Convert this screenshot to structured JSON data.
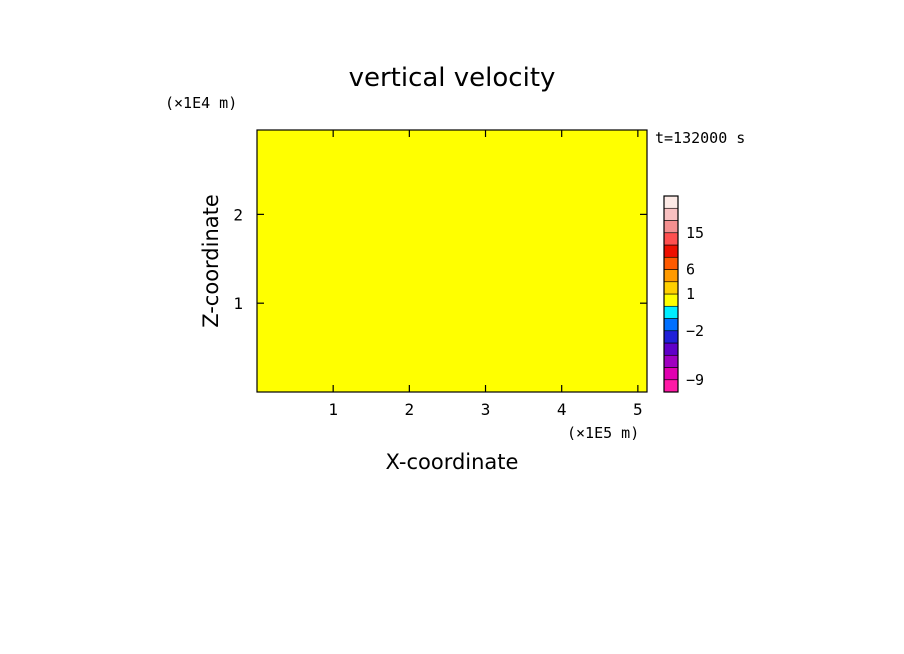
{
  "chart_data": {
    "type": "heatmap",
    "title": "vertical velocity",
    "xlabel": "X-coordinate",
    "ylabel": "Z-coordinate",
    "x_unit": "(×1E5 m)",
    "y_unit": "(×1E4 m)",
    "time_label": "t=132000 s",
    "xlim": [
      0,
      5.12
    ],
    "ylim": [
      0,
      2.95
    ],
    "x_ticks": [
      {
        "value": 1,
        "label": "1"
      },
      {
        "value": 2,
        "label": "2"
      },
      {
        "value": 3,
        "label": "3"
      },
      {
        "value": 4,
        "label": "4"
      },
      {
        "value": 5,
        "label": "5"
      }
    ],
    "y_ticks": [
      {
        "value": 1,
        "label": "1"
      },
      {
        "value": 2,
        "label": "2"
      }
    ],
    "field_colors": {
      "positive": "#ffff00",
      "negative": "#00eeff"
    },
    "colorbar": {
      "bins": [
        {
          "color": "#ff1aa6"
        },
        {
          "color": "#e000b0"
        },
        {
          "color": "#a000c0"
        },
        {
          "color": "#6000c8"
        },
        {
          "color": "#2020d8"
        },
        {
          "color": "#0070ff"
        },
        {
          "color": "#00eeff"
        },
        {
          "color": "#ffff00"
        },
        {
          "color": "#ffd000"
        },
        {
          "color": "#ff9a00"
        },
        {
          "color": "#ff5a00"
        },
        {
          "color": "#ee1000"
        },
        {
          "color": "#ff5050"
        },
        {
          "color": "#f49090"
        },
        {
          "color": "#f8c0c0"
        },
        {
          "color": "#fdeae6"
        }
      ],
      "labels": [
        {
          "text": "15",
          "bin": 13
        },
        {
          "text": "6",
          "bin": 10
        },
        {
          "text": "1",
          "bin": 8
        },
        {
          "text": "−2",
          "bin": 5
        },
        {
          "text": "−9",
          "bin": 1
        }
      ]
    }
  }
}
